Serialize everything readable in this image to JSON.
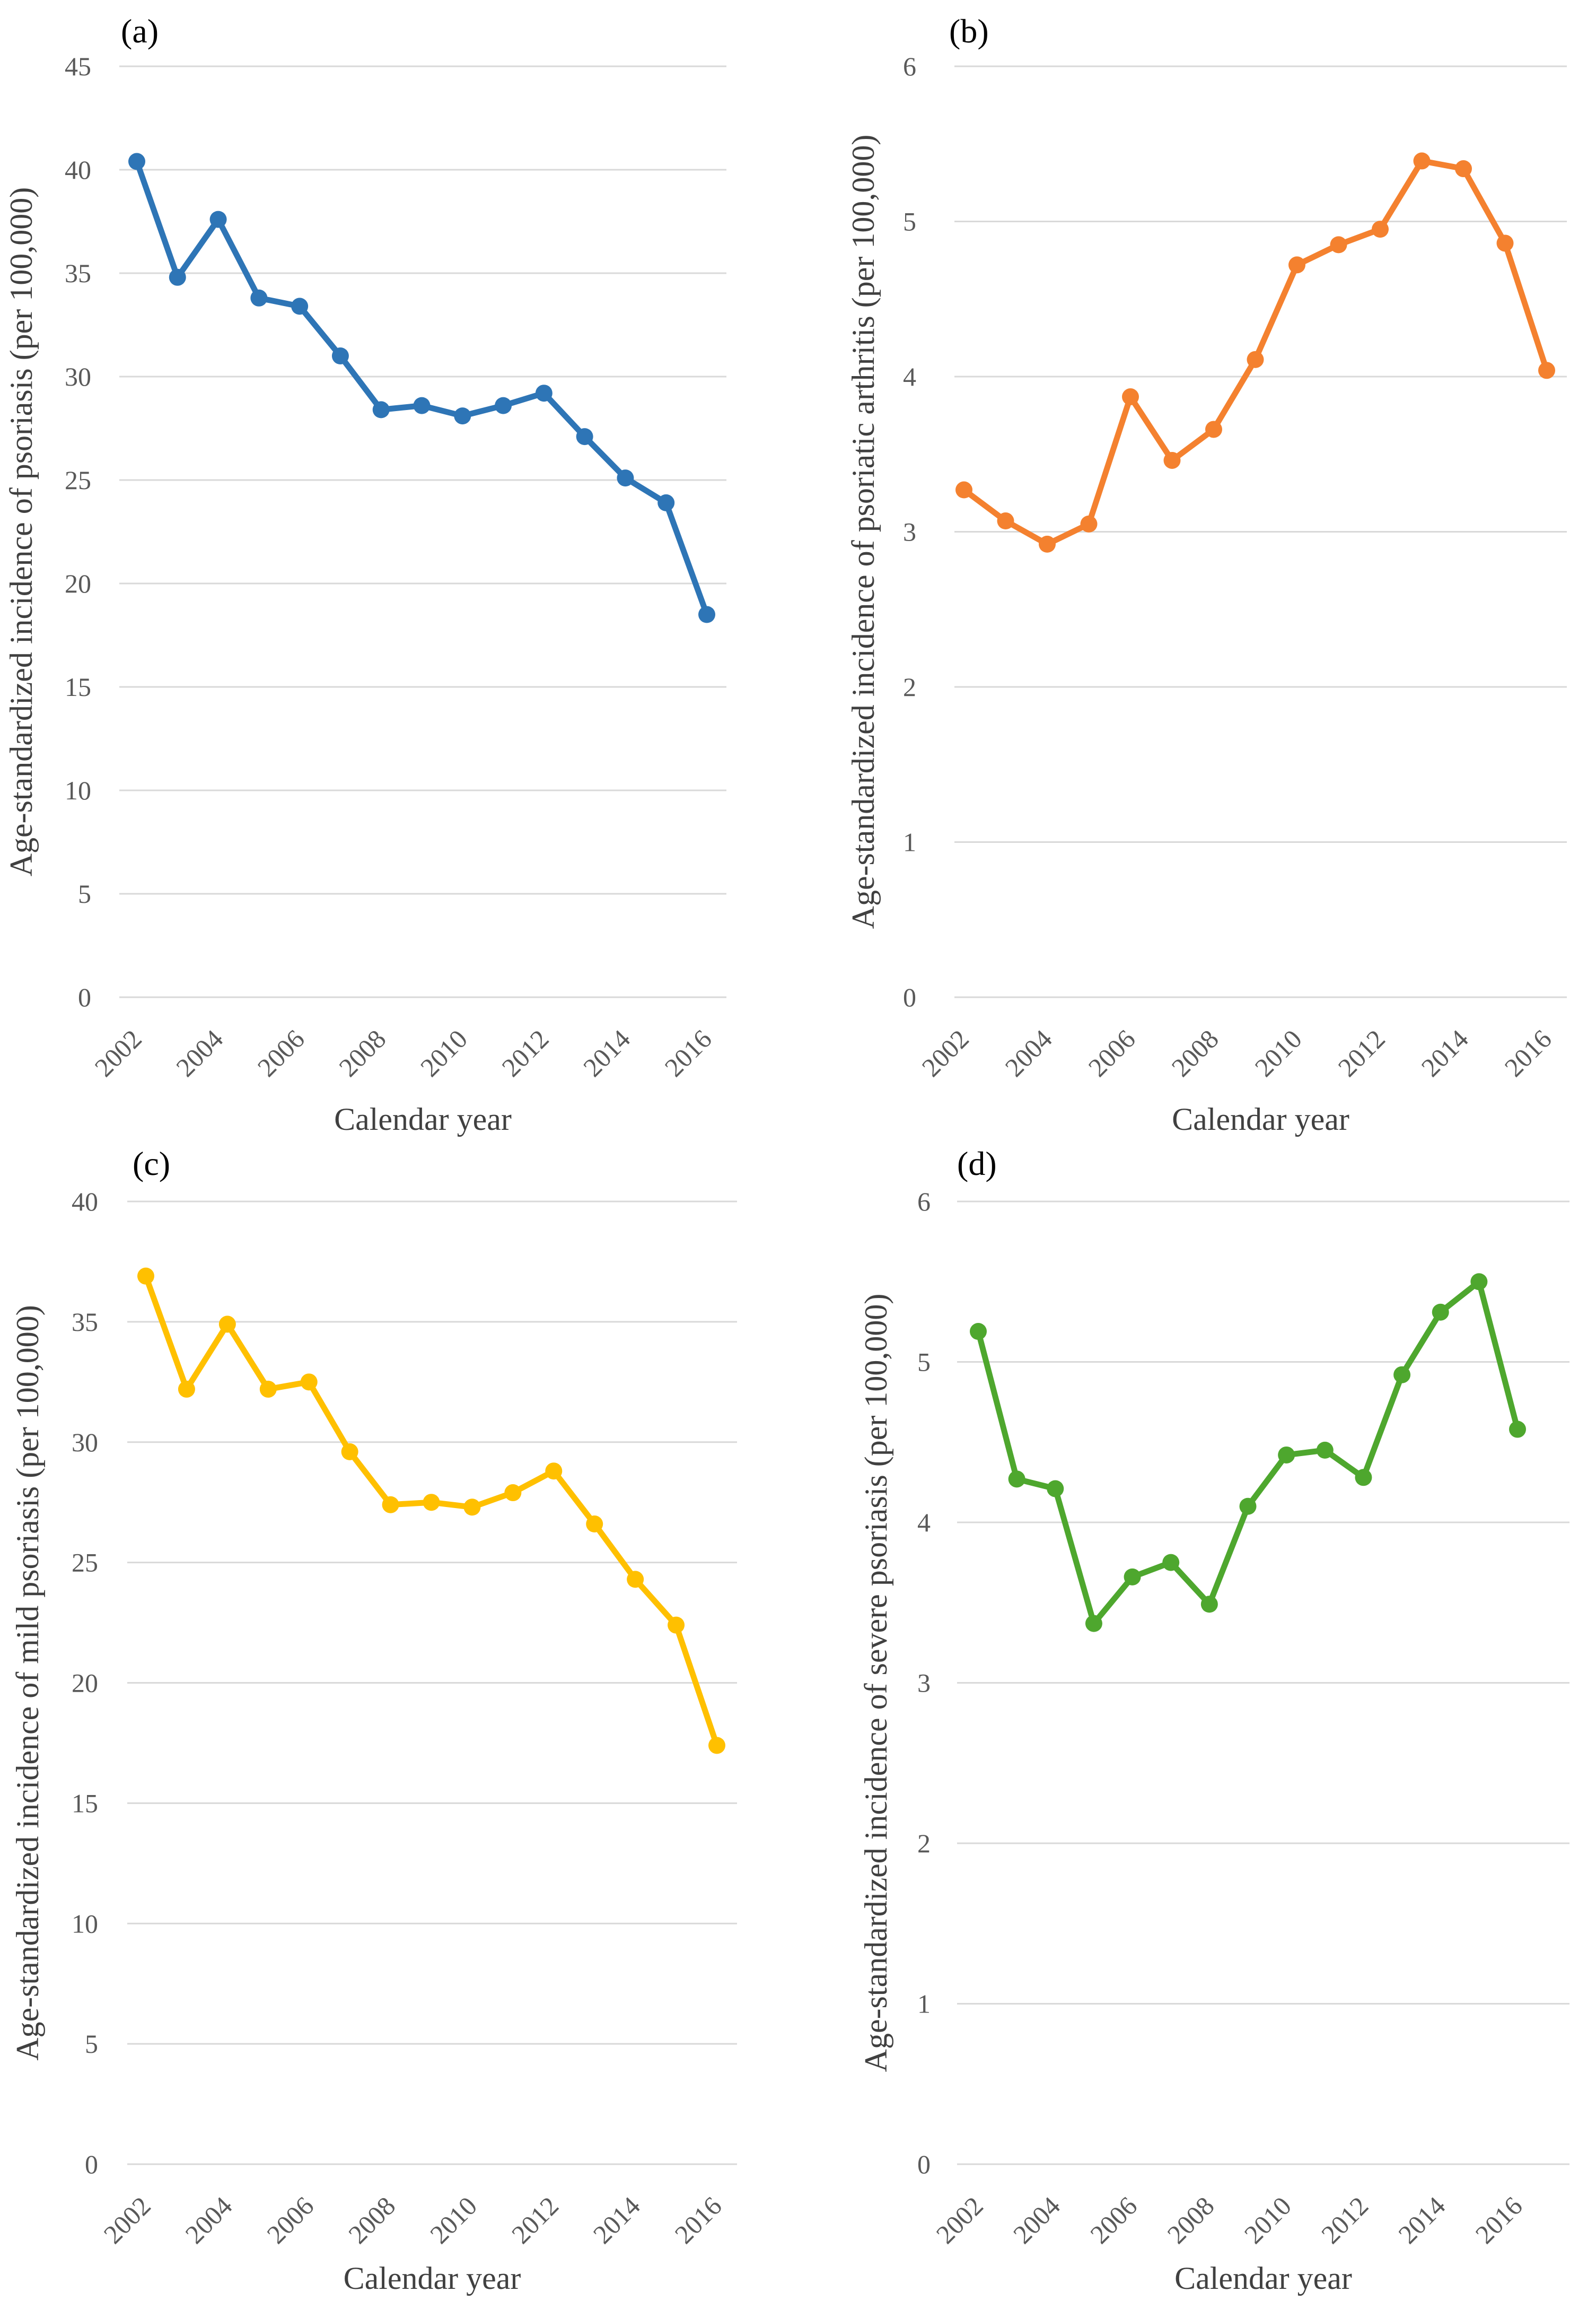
{
  "chart_data": [
    {
      "type": "line",
      "panel_label": "(a)",
      "title": "",
      "xlabel": "Calendar year",
      "ylabel": "Age-standardized incidence of psoriasis (per 100,000)",
      "ylim": [
        0,
        45
      ],
      "yticks": [
        "0",
        "5",
        "10",
        "15",
        "20",
        "25",
        "30",
        "35",
        "40",
        "45"
      ],
      "yticks_values": [
        0,
        5,
        10,
        15,
        20,
        25,
        30,
        35,
        40,
        45
      ],
      "xtick_labels": [
        "2002",
        "2004",
        "2006",
        "2008",
        "2010",
        "2012",
        "2014",
        "2016"
      ],
      "grid": true,
      "color": "#2E75B6",
      "x": [
        2002,
        2003,
        2004,
        2005,
        2006,
        2007,
        2008,
        2009,
        2010,
        2011,
        2012,
        2013,
        2014,
        2015,
        2016
      ],
      "values": [
        40.4,
        34.8,
        37.6,
        33.8,
        33.4,
        31.0,
        28.4,
        28.6,
        28.1,
        28.6,
        29.2,
        27.1,
        25.1,
        23.9,
        18.5
      ]
    },
    {
      "type": "line",
      "panel_label": "(b)",
      "title": "",
      "xlabel": "Calendar year",
      "ylabel": "Age-standardized incidence of psoriatic arthritis (per 100,000)",
      "ylim": [
        0,
        6
      ],
      "yticks": [
        "0",
        "1",
        "2",
        "3",
        "4",
        "5",
        "6"
      ],
      "yticks_values": [
        0,
        1,
        2,
        3,
        4,
        5,
        6
      ],
      "xtick_labels": [
        "2002",
        "2004",
        "2006",
        "2008",
        "2010",
        "2012",
        "2014",
        "2016"
      ],
      "grid": true,
      "color": "#F4812F",
      "x": [
        2002,
        2003,
        2004,
        2005,
        2006,
        2007,
        2008,
        2009,
        2010,
        2011,
        2012,
        2013,
        2014,
        2015,
        2016
      ],
      "values": [
        3.27,
        3.07,
        2.92,
        3.05,
        3.87,
        3.46,
        3.66,
        4.11,
        4.72,
        4.85,
        4.95,
        5.39,
        5.34,
        4.86,
        4.04
      ]
    },
    {
      "type": "line",
      "panel_label": "(c)",
      "title": "",
      "xlabel": "Calendar year",
      "ylabel": "Age-standardized incidence of mild psoriasis (per 100,000)",
      "ylim": [
        0,
        40
      ],
      "yticks": [
        "0",
        "5",
        "10",
        "15",
        "20",
        "25",
        "30",
        "35",
        "40"
      ],
      "yticks_values": [
        0,
        5,
        10,
        15,
        20,
        25,
        30,
        35,
        40
      ],
      "xtick_labels": [
        "2002",
        "2004",
        "2006",
        "2008",
        "2010",
        "2012",
        "2014",
        "2016"
      ],
      "grid": true,
      "color": "#FFC000",
      "x": [
        2002,
        2003,
        2004,
        2005,
        2006,
        2007,
        2008,
        2009,
        2010,
        2011,
        2012,
        2013,
        2014,
        2015,
        2016
      ],
      "values": [
        36.9,
        32.2,
        34.9,
        32.2,
        32.5,
        29.6,
        27.4,
        27.5,
        27.3,
        27.9,
        28.8,
        26.6,
        24.3,
        22.4,
        17.4
      ]
    },
    {
      "type": "line",
      "panel_label": "(d)",
      "title": "",
      "xlabel": "Calendar year",
      "ylabel": "Age-standardized incidence of severe psoriasis (per 100,000)",
      "ylim": [
        0,
        6
      ],
      "yticks": [
        "0",
        "1",
        "2",
        "3",
        "4",
        "5",
        "6"
      ],
      "yticks_values": [
        0,
        1,
        2,
        3,
        4,
        5,
        6
      ],
      "xtick_labels": [
        "2002",
        "2004",
        "2006",
        "2008",
        "2010",
        "2012",
        "2014",
        "2016"
      ],
      "grid": true,
      "color": "#4EA72E",
      "x": [
        2002,
        2003,
        2004,
        2005,
        2006,
        2007,
        2008,
        2009,
        2010,
        2011,
        2012,
        2013,
        2014,
        2015,
        2016
      ],
      "values": [
        5.19,
        4.27,
        4.21,
        3.37,
        3.66,
        3.75,
        3.49,
        4.1,
        4.42,
        4.45,
        4.28,
        4.92,
        5.31,
        5.5,
        4.58
      ]
    }
  ]
}
